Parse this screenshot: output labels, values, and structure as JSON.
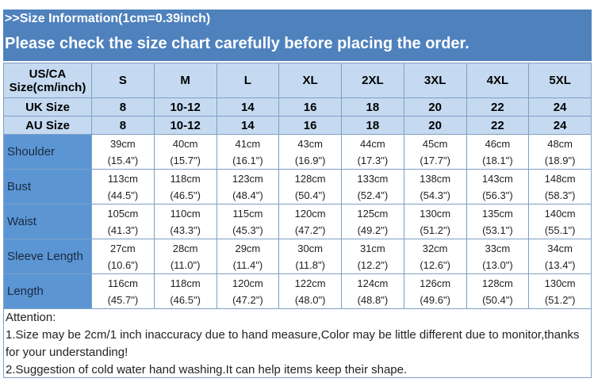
{
  "banner": {
    "line1": ">>Size Information(1cm=0.39inch)",
    "line2": "Please check the size chart carefully before placing the order."
  },
  "header": {
    "label": "US/CA Size(cm/inch)",
    "sizes": [
      "S",
      "M",
      "L",
      "XL",
      "2XL",
      "3XL",
      "4XL",
      "5XL"
    ]
  },
  "uk": {
    "label": "UK Size",
    "values": [
      "8",
      "10-12",
      "14",
      "16",
      "18",
      "20",
      "22",
      "24"
    ]
  },
  "au": {
    "label": "AU Size",
    "values": [
      "8",
      "10-12",
      "14",
      "16",
      "18",
      "20",
      "22",
      "24"
    ]
  },
  "rows": [
    {
      "label": "Shoulder",
      "cm": [
        "39cm",
        "40cm",
        "41cm",
        "43cm",
        "44cm",
        "45cm",
        "46cm",
        "48cm"
      ],
      "inch": [
        "(15.4\")",
        "(15.7\")",
        "(16.1\")",
        "(16.9\")",
        "(17.3\")",
        "(17.7\")",
        "(18.1\")",
        "(18.9\")"
      ]
    },
    {
      "label": "Bust",
      "cm": [
        "113cm",
        "118cm",
        "123cm",
        "128cm",
        "133cm",
        "138cm",
        "143cm",
        "148cm"
      ],
      "inch": [
        "(44.5\")",
        "(46.5\")",
        "(48.4\")",
        "(50.4\")",
        "(52.4\")",
        "(54.3\")",
        "(56.3\")",
        "(58.3\")"
      ]
    },
    {
      "label": "Waist",
      "cm": [
        "105cm",
        "110cm",
        "115cm",
        "120cm",
        "125cm",
        "130cm",
        "135cm",
        "140cm"
      ],
      "inch": [
        "(41.3\")",
        "(43.3\")",
        "(45.3\")",
        "(47.2\")",
        "(49.2\")",
        "(51.2\")",
        "(53.1\")",
        "(55.1\")"
      ]
    },
    {
      "label": "Sleeve Length",
      "cm": [
        "27cm",
        "28cm",
        "29cm",
        "30cm",
        "31cm",
        "32cm",
        "33cm",
        "34cm"
      ],
      "inch": [
        "(10.6\")",
        "(11.0\")",
        "(11.4\")",
        "(11.8\")",
        "(12.2\")",
        "(12.6\")",
        "(13.0\")",
        "(13.4\")"
      ]
    },
    {
      "label": "Length",
      "cm": [
        "116cm",
        "118cm",
        "120cm",
        "122cm",
        "124cm",
        "126cm",
        "128cm",
        "130cm"
      ],
      "inch": [
        "(45.7\")",
        "(46.5\")",
        "(47.2\")",
        "(48.0\")",
        "(48.8\")",
        "(49.6\")",
        "(50.4\")",
        "(51.2\")"
      ]
    }
  ],
  "attention": {
    "title": "Attention:",
    "line1": "1.Size may be 2cm/1 inch inaccuracy due to hand measure,Color may be little different due to monitor,thanks for your understanding!",
    "line2": "2.Suggestion of cold water hand washing.It can help items keep their shape."
  },
  "colors": {
    "banner": "#4f81bd",
    "header": "#c5daf1",
    "label": "#5b95d3"
  }
}
